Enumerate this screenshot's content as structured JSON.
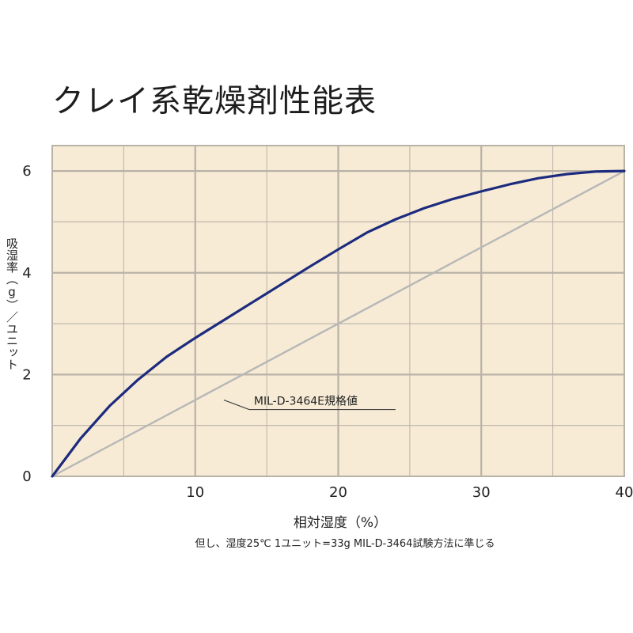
{
  "title": "クレイ系乾燥剤性能表",
  "xlabel": "相対湿度（%）",
  "ylabel": "吸湿率（g）／ユニット",
  "note": "但し、湿度25℃ 1ユニット=33g MIL-D-3464試験方法に準じる",
  "annotation": "MIL-D-3464E規格値",
  "colors": {
    "background": "#f7ebd5",
    "grid": "#b9b2a7",
    "clay_curve": "#1d2b7e",
    "spec_line": "#b7b7b7",
    "axis_text": "#222222"
  },
  "chart_data": {
    "type": "line",
    "x_range": [
      0,
      40
    ],
    "y_range": [
      0,
      6.5
    ],
    "xticks": [
      10,
      20,
      30,
      40
    ],
    "yticks": [
      0,
      2,
      4,
      6
    ],
    "grid": true,
    "series": [
      {
        "key": "clay",
        "x": [
          0,
          2,
          4,
          6,
          8,
          10,
          12,
          14,
          16,
          18,
          20,
          22,
          24,
          26,
          28,
          30,
          32,
          34,
          36,
          38,
          40
        ],
        "y": [
          0,
          0.75,
          1.38,
          1.9,
          2.35,
          2.72,
          3.07,
          3.42,
          3.77,
          4.12,
          4.46,
          4.79,
          5.05,
          5.27,
          5.45,
          5.6,
          5.74,
          5.86,
          5.94,
          5.99,
          6.0
        ]
      },
      {
        "key": "spec",
        "x": [
          0,
          40
        ],
        "y": [
          0,
          6.0
        ]
      }
    ],
    "annotations": [
      {
        "text": "MIL-D-3464E規格値",
        "x": 12,
        "y": 1.5
      }
    ]
  }
}
